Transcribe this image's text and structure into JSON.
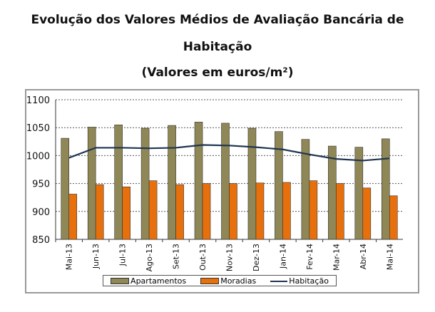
{
  "chart_data": {
    "type": "bar",
    "title_lines": [
      "Evolução dos Valores Médios de Avaliação Bancária de",
      "Habitação",
      "(Valores em euros/m²)"
    ],
    "categories": [
      "Mai-13",
      "Jun-13",
      "Jul-13",
      "Ago-13",
      "Set-13",
      "Out-13",
      "Nov-13",
      "Dez-13",
      "Jan-14",
      "Fev-14",
      "Mar-14",
      "Abr-14",
      "Mai-14"
    ],
    "ylim": [
      850,
      1100
    ],
    "yticks": [
      "850",
      "900",
      "950",
      "1000",
      "1050",
      "1100"
    ],
    "grid": true,
    "legend_placement": "bottom",
    "series": [
      {
        "name": "Apartamentos",
        "type": "bar",
        "color": "#8f8756",
        "values": [
          1031,
          1051,
          1055,
          1049,
          1054,
          1060,
          1058,
          1049,
          1043,
          1029,
          1017,
          1015,
          1030
        ]
      },
      {
        "name": "Moradias",
        "type": "bar",
        "color": "#e8700c",
        "values": [
          931,
          948,
          944,
          955,
          948,
          950,
          950,
          951,
          952,
          955,
          950,
          942,
          928
        ]
      },
      {
        "name": "Habitação",
        "type": "line",
        "color": "#1f3550",
        "values": [
          996,
          1014,
          1014,
          1013,
          1014,
          1019,
          1018,
          1015,
          1011,
          1002,
          994,
          991,
          995
        ]
      }
    ]
  }
}
